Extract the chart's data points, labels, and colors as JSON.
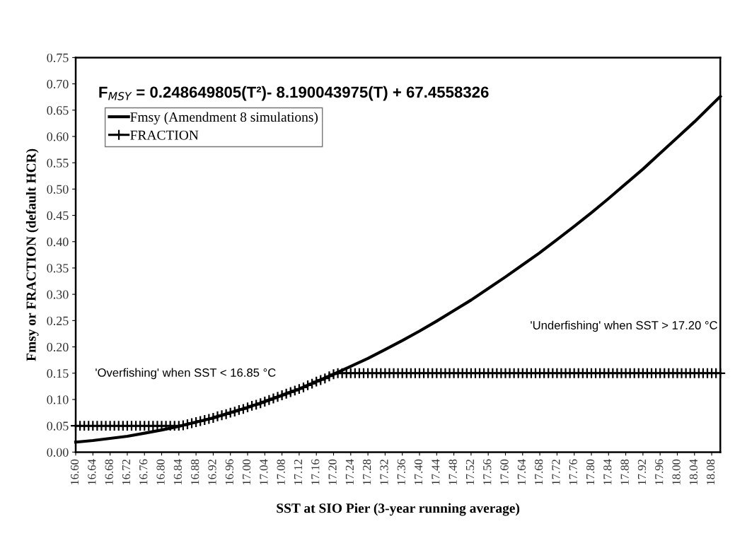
{
  "chart_data": {
    "type": "line",
    "xlabel": "SST at SIO Pier (3-year running average)",
    "ylabel": "Fmsy or FRACTION (default HCR)",
    "annotations": [
      "F$_{MSY}$ = 0.248649805(T²)- 8.190043975(T) + 67.4558326",
      "'Overfishing' when SST < 16.85 °C",
      "'Underfishing' when SST > 17.20 °C"
    ],
    "xlim": [
      16.6,
      18.1
    ],
    "xticks": [
      {
        "value": 16.6,
        "label": "16.60"
      },
      {
        "value": 16.64,
        "label": "16.64"
      },
      {
        "value": 16.68,
        "label": "16.68"
      },
      {
        "value": 16.72,
        "label": "16.72"
      },
      {
        "value": 16.76,
        "label": "16.76"
      },
      {
        "value": 16.8,
        "label": "16.80"
      },
      {
        "value": 16.84,
        "label": "16.84"
      },
      {
        "value": 16.88,
        "label": "16.88"
      },
      {
        "value": 16.92,
        "label": "16.92"
      },
      {
        "value": 16.96,
        "label": "16.96"
      },
      {
        "value": 17.0,
        "label": "17.00"
      },
      {
        "value": 17.04,
        "label": "17.04"
      },
      {
        "value": 17.08,
        "label": "17.08"
      },
      {
        "value": 17.12,
        "label": "17.12"
      },
      {
        "value": 17.16,
        "label": "17.16"
      },
      {
        "value": 17.2,
        "label": "17.20"
      },
      {
        "value": 17.24,
        "label": "17.24"
      },
      {
        "value": 17.28,
        "label": "17.28"
      },
      {
        "value": 17.32,
        "label": "17.32"
      },
      {
        "value": 17.36,
        "label": "17.36"
      },
      {
        "value": 17.4,
        "label": "17.40"
      },
      {
        "value": 17.44,
        "label": "17.44"
      },
      {
        "value": 17.48,
        "label": "17.48"
      },
      {
        "value": 17.52,
        "label": "17.52"
      },
      {
        "value": 17.56,
        "label": "17.56"
      },
      {
        "value": 17.6,
        "label": "17.60"
      },
      {
        "value": 17.64,
        "label": "17.64"
      },
      {
        "value": 17.68,
        "label": "17.68"
      },
      {
        "value": 17.72,
        "label": "17.72"
      },
      {
        "value": 17.76,
        "label": "17.76"
      },
      {
        "value": 17.8,
        "label": "17.80"
      },
      {
        "value": 17.84,
        "label": "17.84"
      },
      {
        "value": 17.88,
        "label": "17.88"
      },
      {
        "value": 17.92,
        "label": "17.92"
      },
      {
        "value": 17.96,
        "label": "17.96"
      },
      {
        "value": 18.0,
        "label": "18.00"
      },
      {
        "value": 18.04,
        "label": "18.04"
      },
      {
        "value": 18.08,
        "label": "18.08"
      }
    ],
    "ylim": [
      0,
      0.75
    ],
    "yticks": [
      {
        "value": 0,
        "label": "0.00"
      },
      {
        "value": 0.05,
        "label": "0.05"
      },
      {
        "value": 0.1,
        "label": "0.10"
      },
      {
        "value": 0.15,
        "label": "0.15"
      },
      {
        "value": 0.2,
        "label": "0.20"
      },
      {
        "value": 0.25,
        "label": "0.25"
      },
      {
        "value": 0.3,
        "label": "0.30"
      },
      {
        "value": 0.35,
        "label": "0.35"
      },
      {
        "value": 0.4,
        "label": "0.40"
      },
      {
        "value": 0.45,
        "label": "0.45"
      },
      {
        "value": 0.5,
        "label": "0.50"
      },
      {
        "value": 0.55,
        "label": "0.55"
      },
      {
        "value": 0.6,
        "label": "0.60"
      },
      {
        "value": 0.65,
        "label": "0.65"
      },
      {
        "value": 0.7,
        "label": "0.70"
      },
      {
        "value": 0.75,
        "label": "0.75"
      }
    ],
    "grid": false,
    "legend": "top left",
    "series": [
      {
        "name": "Fmsy (Amendment 8 simulations)",
        "color": "#000000",
        "marker": "none",
        "line_style": "solid",
        "x": [
          16.6,
          16.64,
          16.68,
          16.72,
          16.76,
          16.8,
          16.84,
          16.88,
          16.92,
          16.96,
          17.0,
          17.04,
          17.08,
          17.12,
          17.16,
          17.2,
          17.24,
          17.28,
          17.32,
          17.36,
          17.4,
          17.44,
          17.48,
          17.52,
          17.56,
          17.6,
          17.64,
          17.68,
          17.72,
          17.76,
          17.8,
          17.84,
          17.88,
          17.92,
          17.96,
          18.0,
          18.04,
          18.08,
          18.1
        ],
        "values": [
          0.019,
          0.022,
          0.026,
          0.03,
          0.036,
          0.042,
          0.049,
          0.057,
          0.065,
          0.075,
          0.085,
          0.096,
          0.108,
          0.12,
          0.134,
          0.148,
          0.163,
          0.178,
          0.195,
          0.212,
          0.23,
          0.249,
          0.269,
          0.289,
          0.311,
          0.333,
          0.356,
          0.379,
          0.404,
          0.429,
          0.455,
          0.482,
          0.51,
          0.538,
          0.568,
          0.598,
          0.628,
          0.66,
          0.676
        ]
      },
      {
        "name": "FRACTION",
        "color": "#000000",
        "marker": "cross",
        "line_style": "solid",
        "x": [
          16.6,
          16.61,
          16.62,
          16.63,
          16.64,
          16.65,
          16.66,
          16.67,
          16.68,
          16.69,
          16.7,
          16.71,
          16.72,
          16.73,
          16.74,
          16.75,
          16.76,
          16.77,
          16.78,
          16.79,
          16.8,
          16.81,
          16.82,
          16.83,
          16.84,
          16.85,
          16.86,
          16.87,
          16.88,
          16.89,
          16.9,
          16.91,
          16.92,
          16.93,
          16.94,
          16.95,
          16.96,
          16.97,
          16.98,
          16.99,
          17.0,
          17.01,
          17.02,
          17.03,
          17.04,
          17.05,
          17.06,
          17.07,
          17.08,
          17.09,
          17.1,
          17.11,
          17.12,
          17.13,
          17.14,
          17.15,
          17.16,
          17.17,
          17.18,
          17.19,
          17.2,
          17.21,
          17.22,
          17.23,
          17.24,
          17.25,
          17.26,
          17.27,
          17.28,
          17.29,
          17.3,
          17.31,
          17.32,
          17.33,
          17.34,
          17.35,
          17.36,
          17.37,
          17.38,
          17.39,
          17.4,
          17.41,
          17.42,
          17.43,
          17.44,
          17.45,
          17.46,
          17.47,
          17.48,
          17.49,
          17.5,
          17.51,
          17.52,
          17.53,
          17.54,
          17.55,
          17.56,
          17.57,
          17.58,
          17.59,
          17.6,
          17.61,
          17.62,
          17.63,
          17.64,
          17.65,
          17.66,
          17.67,
          17.68,
          17.69,
          17.7,
          17.71,
          17.72,
          17.73,
          17.74,
          17.75,
          17.76,
          17.77,
          17.78,
          17.79,
          17.8,
          17.81,
          17.82,
          17.83,
          17.84,
          17.85,
          17.86,
          17.87,
          17.88,
          17.89,
          17.9,
          17.91,
          17.92,
          17.93,
          17.94,
          17.95,
          17.96,
          17.97,
          17.98,
          17.99,
          18.0,
          18.01,
          18.02,
          18.03,
          18.04,
          18.05,
          18.06,
          18.07,
          18.08,
          18.09,
          18.1
        ],
        "values": [
          0.05,
          0.05,
          0.05,
          0.05,
          0.05,
          0.05,
          0.05,
          0.05,
          0.05,
          0.05,
          0.05,
          0.05,
          0.05,
          0.05,
          0.05,
          0.05,
          0.05,
          0.05,
          0.05,
          0.05,
          0.05,
          0.05,
          0.05,
          0.05,
          0.05,
          0.051,
          0.053,
          0.055,
          0.057,
          0.059,
          0.061,
          0.063,
          0.065,
          0.068,
          0.07,
          0.072,
          0.075,
          0.077,
          0.08,
          0.082,
          0.085,
          0.088,
          0.09,
          0.093,
          0.096,
          0.099,
          0.102,
          0.105,
          0.108,
          0.111,
          0.114,
          0.117,
          0.12,
          0.123,
          0.127,
          0.13,
          0.134,
          0.137,
          0.14,
          0.144,
          0.148,
          0.15,
          0.15,
          0.15,
          0.15,
          0.15,
          0.15,
          0.15,
          0.15,
          0.15,
          0.15,
          0.15,
          0.15,
          0.15,
          0.15,
          0.15,
          0.15,
          0.15,
          0.15,
          0.15,
          0.15,
          0.15,
          0.15,
          0.15,
          0.15,
          0.15,
          0.15,
          0.15,
          0.15,
          0.15,
          0.15,
          0.15,
          0.15,
          0.15,
          0.15,
          0.15,
          0.15,
          0.15,
          0.15,
          0.15,
          0.15,
          0.15,
          0.15,
          0.15,
          0.15,
          0.15,
          0.15,
          0.15,
          0.15,
          0.15,
          0.15,
          0.15,
          0.15,
          0.15,
          0.15,
          0.15,
          0.15,
          0.15,
          0.15,
          0.15,
          0.15,
          0.15,
          0.15,
          0.15,
          0.15,
          0.15,
          0.15,
          0.15,
          0.15,
          0.15,
          0.15,
          0.15,
          0.15,
          0.15,
          0.15,
          0.15,
          0.15,
          0.15,
          0.15,
          0.15,
          0.15,
          0.15,
          0.15,
          0.15,
          0.15,
          0.15,
          0.15,
          0.15,
          0.15,
          0.15,
          0.15
        ]
      }
    ]
  }
}
